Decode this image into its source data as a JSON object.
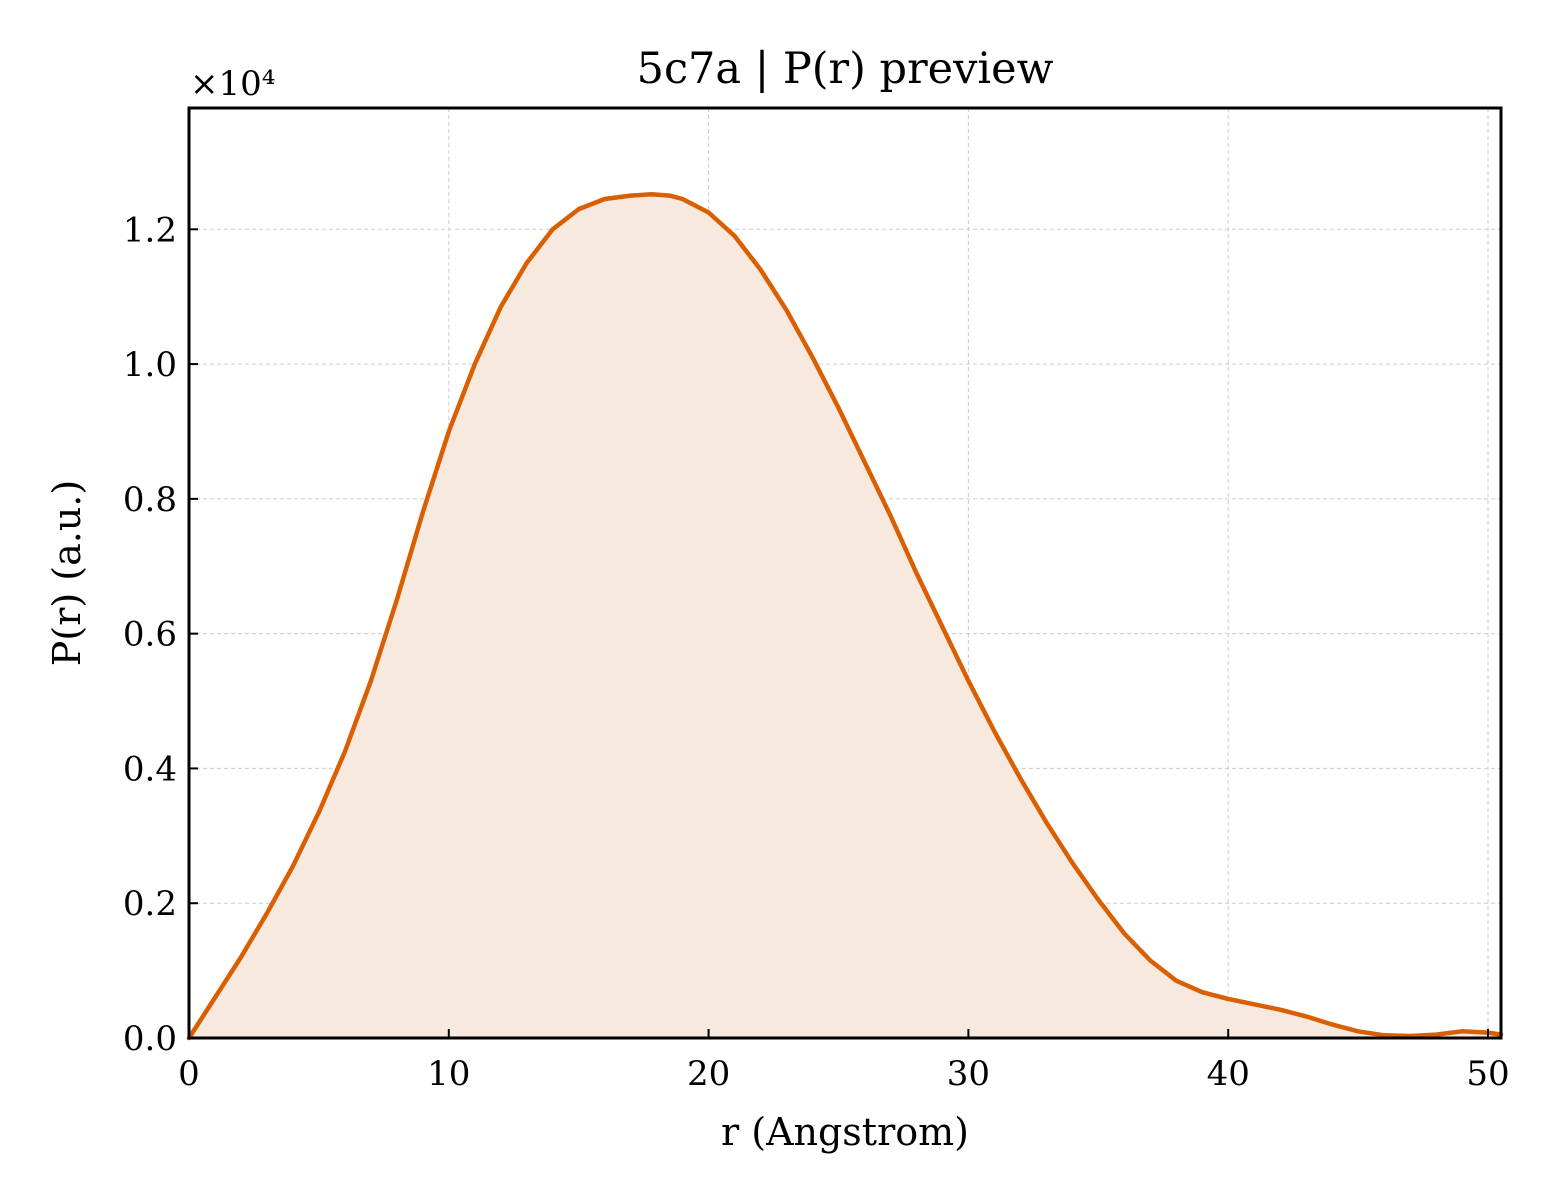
{
  "chart_data": {
    "type": "area",
    "title": "5c7a | P(r) preview",
    "xlabel": "r (Angstrom)",
    "ylabel": "P(r) (a.u.)",
    "y_offset_label": "×10⁴",
    "xlim": [
      0,
      50.5
    ],
    "ylim": [
      0,
      1.38
    ],
    "y_multiplier": 10000,
    "xticks": [
      0,
      10,
      20,
      30,
      40,
      50
    ],
    "yticks": [
      0.0,
      0.2,
      0.4,
      0.6,
      0.8,
      1.0,
      1.2
    ],
    "xtick_labels": [
      "0",
      "10",
      "20",
      "30",
      "40",
      "50"
    ],
    "ytick_labels": [
      "0.0",
      "0.2",
      "0.4",
      "0.6",
      "0.8",
      "1.0",
      "1.2"
    ],
    "grid": true,
    "colors": {
      "line": "#d95f02",
      "fill": "#f8e9de",
      "grid": "#cccccc"
    },
    "series": [
      {
        "x": [
          0,
          1,
          2,
          3,
          4,
          5,
          6,
          7,
          8,
          9,
          10,
          11,
          12,
          13,
          14,
          15,
          16,
          17,
          17.8,
          18.5,
          19,
          20,
          21,
          22,
          23,
          24,
          25,
          26,
          27,
          28,
          29,
          30,
          31,
          32,
          33,
          34,
          35,
          36,
          37,
          38,
          39,
          40,
          41,
          42,
          43,
          44,
          45,
          46,
          47,
          48,
          49,
          50,
          50.5
        ],
        "values": [
          0.0,
          0.06,
          0.12,
          0.185,
          0.255,
          0.335,
          0.425,
          0.53,
          0.65,
          0.78,
          0.9,
          1.0,
          1.085,
          1.15,
          1.2,
          1.23,
          1.245,
          1.25,
          1.252,
          1.25,
          1.245,
          1.225,
          1.19,
          1.14,
          1.08,
          1.01,
          0.935,
          0.855,
          0.775,
          0.69,
          0.61,
          0.53,
          0.455,
          0.385,
          0.32,
          0.26,
          0.205,
          0.155,
          0.115,
          0.085,
          0.068,
          0.058,
          0.05,
          0.042,
          0.032,
          0.02,
          0.01,
          0.004,
          0.003,
          0.005,
          0.01,
          0.008,
          0.005
        ]
      }
    ]
  }
}
